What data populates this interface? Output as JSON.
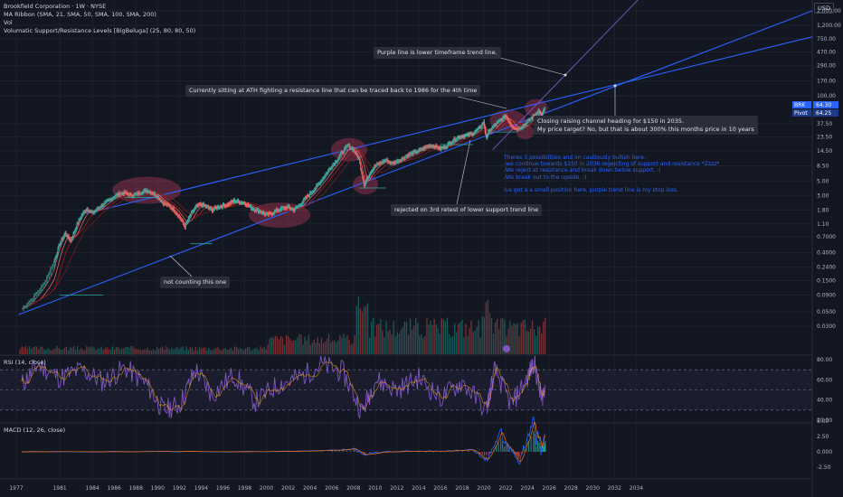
{
  "legend": {
    "title": "Brookfield Corporation · 1W · NYSE",
    "ribbon": "MA Ribbon (SMA, 21, SMA, 50, SMA, 100, SMA, 200)",
    "vol": "Vol",
    "levels": "Volumatic Support/Resistance Levels [BigBeluga] (25, 80, 80, 50)"
  },
  "currency": "USD",
  "annotations": {
    "purple": "Purple line is lower timeframe trend line.",
    "ath": "Currently sitting at ATH fighting a resistance line that can be traced back to 1986 for the 4th time",
    "closing1": "Closing raising channel heading for $150 in 2035.",
    "closing2": "My price target? No, but that is about 300% this months price in 10 years",
    "rejected": "rejected on 3rd retest of lower support trend line",
    "not_counting": "not counting this one",
    "notes": [
      "Theres 3 possibilities and im cautiously bullish here.",
      "-we continue towards $150 in 2036 regejcting of support and resistance *Zzzz*",
      "-We reject at resistance and break down below support. :(",
      "-We break out to the upside. :)",
      "",
      "Ive got a a small position here, purple trend line is my stop loss."
    ]
  },
  "price_tags": {
    "brk": "BRK",
    "brk_value": "64.30",
    "pivot": "Pivot",
    "pivot_value": "64.25"
  },
  "rsi": {
    "label": "RSI (14, close)"
  },
  "macd": {
    "label": "MACD (12, 26, close)"
  },
  "colors": {
    "bg": "#131722",
    "trend": "#2962ff",
    "purple": "#7e57c2",
    "up": "#26a69a",
    "down": "#ef5350",
    "rsi": "#7e57c2",
    "highlight": "#e0446a"
  },
  "chart_data": [
    {
      "type": "line",
      "title": "Brookfield Corporation · 1W · NYSE",
      "scale": "log",
      "x_ticks": [
        "1977",
        "1981",
        "1984",
        "1986",
        "1988",
        "1990",
        "1992",
        "1994",
        "1996",
        "1998",
        "2000",
        "2002",
        "2004",
        "2006",
        "2008",
        "2010",
        "2012",
        "2014",
        "2016",
        "2018",
        "2020",
        "2022",
        "2024",
        "2026",
        "2028",
        "2030",
        "2032",
        "2034"
      ],
      "y_ticks": [
        "2,000.00",
        "1,200.00",
        "750.00",
        "470.00",
        "290.00",
        "170.00",
        "100.00",
        "37.50",
        "23.50",
        "14.50",
        "8.50",
        "5.00",
        "3.00",
        "1.80",
        "1.10",
        "0.7000",
        "0.4000",
        "0.2400",
        "0.1500",
        "0.0900",
        "0.0500",
        "0.0300"
      ],
      "series": [
        {
          "values": [
            [
              1977.5,
              0.055
            ],
            [
              1978.5,
              0.08
            ],
            [
              1979.5,
              0.13
            ],
            [
              1980.5,
              0.3
            ],
            [
              1981.0,
              0.55
            ],
            [
              1981.5,
              0.8
            ],
            [
              1982.0,
              0.6
            ],
            [
              1982.5,
              1.0
            ],
            [
              1983.0,
              1.5
            ],
            [
              1983.5,
              1.9
            ],
            [
              1984.0,
              1.6
            ],
            [
              1984.5,
              1.9
            ],
            [
              1985.0,
              2.2
            ],
            [
              1985.5,
              2.5
            ],
            [
              1986.0,
              2.9
            ],
            [
              1986.5,
              3.2
            ],
            [
              1987.0,
              3.3
            ],
            [
              1987.5,
              3.0
            ],
            [
              1988.0,
              3.1
            ],
            [
              1988.5,
              3.4
            ],
            [
              1989.0,
              3.6
            ],
            [
              1989.5,
              3.3
            ],
            [
              1990.0,
              2.9
            ],
            [
              1990.5,
              2.3
            ],
            [
              1991.0,
              2.1
            ],
            [
              1991.5,
              1.8
            ],
            [
              1992.0,
              1.4
            ],
            [
              1992.5,
              1.0
            ],
            [
              1993.0,
              1.5
            ],
            [
              1993.5,
              2.0
            ],
            [
              1994.0,
              2.2
            ],
            [
              1994.5,
              2.0
            ],
            [
              1995.0,
              1.8
            ],
            [
              1995.5,
              2.0
            ],
            [
              1996.0,
              2.1
            ],
            [
              1996.5,
              2.2
            ],
            [
              1997.0,
              2.5
            ],
            [
              1997.5,
              2.4
            ],
            [
              1998.0,
              2.3
            ],
            [
              1998.5,
              2.0
            ],
            [
              1999.0,
              1.8
            ],
            [
              1999.5,
              1.7
            ],
            [
              2000.0,
              1.5
            ],
            [
              2000.5,
              1.6
            ],
            [
              2001.0,
              1.8
            ],
            [
              2001.5,
              1.9
            ],
            [
              2002.0,
              2.0
            ],
            [
              2002.5,
              1.8
            ],
            [
              2003.0,
              2.1
            ],
            [
              2003.5,
              2.6
            ],
            [
              2004.0,
              3.2
            ],
            [
              2004.5,
              3.9
            ],
            [
              2005.0,
              5.0
            ],
            [
              2005.5,
              6.5
            ],
            [
              2006.0,
              8.5
            ],
            [
              2006.5,
              10.5
            ],
            [
              2007.0,
              14.0
            ],
            [
              2007.5,
              17.5
            ],
            [
              2008.0,
              15.0
            ],
            [
              2008.5,
              11.0
            ],
            [
              2009.0,
              4.3
            ],
            [
              2009.3,
              5.5
            ],
            [
              2009.6,
              7.0
            ],
            [
              2010.0,
              8.5
            ],
            [
              2010.5,
              9.5
            ],
            [
              2011.0,
              10.5
            ],
            [
              2011.5,
              9.2
            ],
            [
              2012.0,
              10.0
            ],
            [
              2012.5,
              11.0
            ],
            [
              2013.0,
              12.5
            ],
            [
              2013.5,
              13.5
            ],
            [
              2014.0,
              14.5
            ],
            [
              2014.5,
              16.0
            ],
            [
              2015.0,
              17.5
            ],
            [
              2015.5,
              17.0
            ],
            [
              2016.0,
              15.5
            ],
            [
              2016.5,
              17.0
            ],
            [
              2017.0,
              20.0
            ],
            [
              2017.5,
              23.0
            ],
            [
              2018.0,
              24.5
            ],
            [
              2018.5,
              25.0
            ],
            [
              2019.0,
              27.0
            ],
            [
              2019.5,
              31.0
            ],
            [
              2020.0,
              40.0
            ],
            [
              2020.2,
              23.0
            ],
            [
              2020.5,
              29.0
            ],
            [
              2021.0,
              36.0
            ],
            [
              2021.5,
              42.0
            ],
            [
              2022.0,
              50.0
            ],
            [
              2022.5,
              36.0
            ],
            [
              2023.0,
              31.0
            ],
            [
              2023.5,
              34.0
            ],
            [
              2024.0,
              40.0
            ],
            [
              2024.5,
              48.0
            ],
            [
              2025.0,
              60.0
            ],
            [
              2025.3,
              50.0
            ],
            [
              2025.6,
              64.3
            ]
          ]
        }
      ]
    },
    {
      "type": "line",
      "title": "RSI (14, close)",
      "y_ticks": [
        "80.00",
        "60.00",
        "40.00",
        "20.00"
      ],
      "ylim": [
        20,
        85
      ],
      "series": [
        {
          "values": [
            [
              1977.5,
              55
            ],
            [
              1979,
              75
            ],
            [
              1981,
              62
            ],
            [
              1983,
              70
            ],
            [
              1985,
              58
            ],
            [
              1987,
              72
            ],
            [
              1989,
              55
            ],
            [
              1990.5,
              30
            ],
            [
              1992,
              35
            ],
            [
              1993.5,
              70
            ],
            [
              1995,
              45
            ],
            [
              1997,
              65
            ],
            [
              1999,
              38
            ],
            [
              2001,
              55
            ],
            [
              2003,
              62
            ],
            [
              2005,
              75
            ],
            [
              2007,
              68
            ],
            [
              2008.8,
              28
            ],
            [
              2010,
              60
            ],
            [
              2012,
              50
            ],
            [
              2014,
              62
            ],
            [
              2016,
              42
            ],
            [
              2018,
              58
            ],
            [
              2020.2,
              30
            ],
            [
              2021,
              70
            ],
            [
              2022.5,
              35
            ],
            [
              2024,
              62
            ],
            [
              2024.6,
              78
            ],
            [
              2025.3,
              40
            ],
            [
              2025.6,
              55
            ]
          ]
        }
      ]
    },
    {
      "type": "line",
      "title": "MACD (12, 26, close)",
      "y_ticks": [
        "5.00",
        "2.50",
        "0.000",
        "-2.50"
      ],
      "ylim": [
        -3.5,
        7.5
      ],
      "series": [
        {
          "values": [
            [
              1977.5,
              0
            ],
            [
              1990,
              0.05
            ],
            [
              2000,
              0
            ],
            [
              2006,
              0.2
            ],
            [
              2008,
              0.5
            ],
            [
              2009,
              -0.4
            ],
            [
              2012,
              0.1
            ],
            [
              2016,
              0.1
            ],
            [
              2019,
              0.4
            ],
            [
              2020.2,
              -1.5
            ],
            [
              2021.5,
              3.0
            ],
            [
              2022.5,
              0.5
            ],
            [
              2023.2,
              -1.8
            ],
            [
              2024.5,
              4.5
            ],
            [
              2025.3,
              0.5
            ],
            [
              2025.6,
              3.0
            ]
          ]
        }
      ]
    }
  ]
}
